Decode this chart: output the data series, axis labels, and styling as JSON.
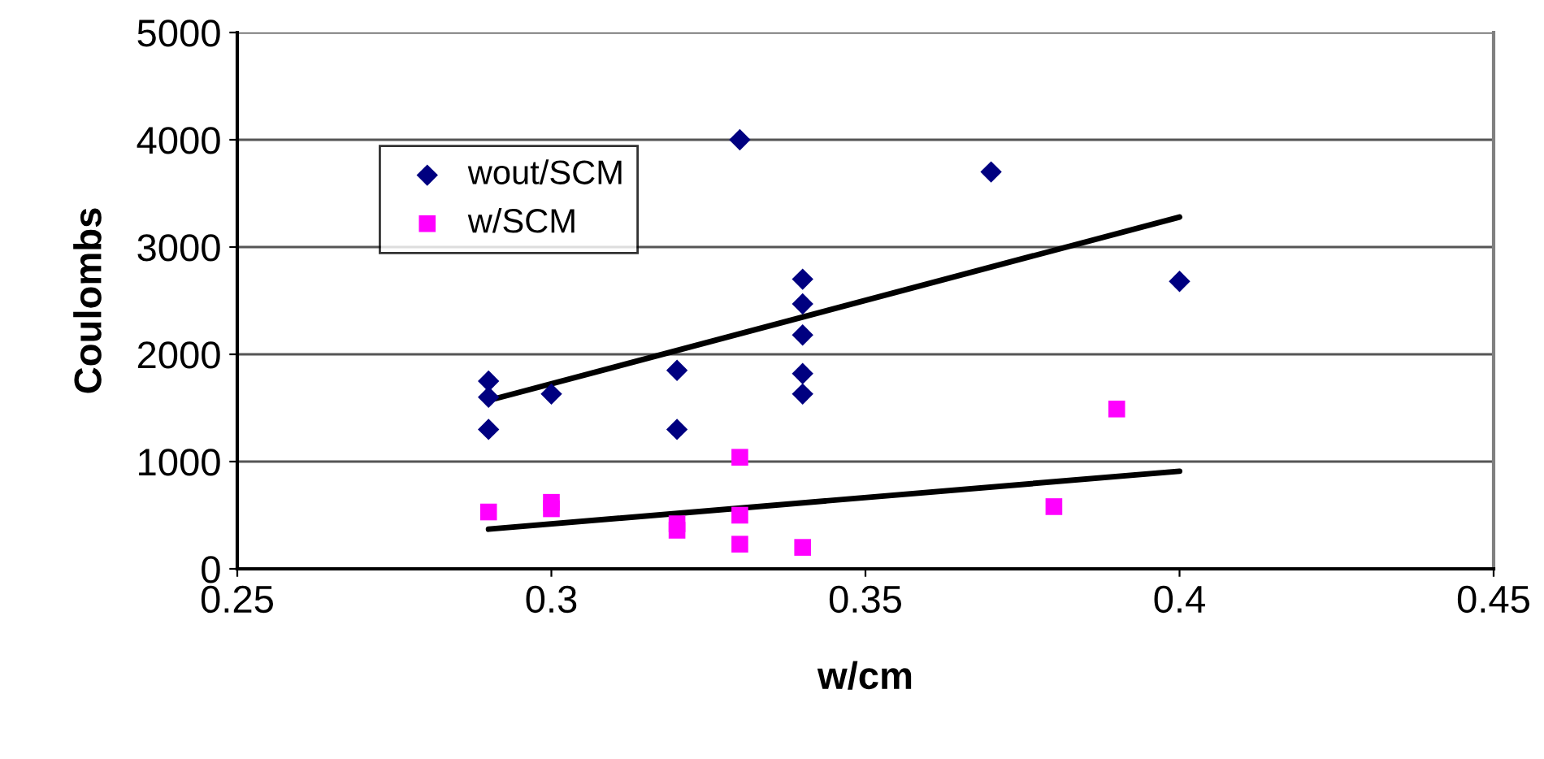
{
  "chart_data": {
    "type": "scatter",
    "xlabel": "w/cm",
    "ylabel": "Coulombs",
    "xlim": [
      0.25,
      0.45
    ],
    "xticks": [
      0.25,
      0.3,
      0.35,
      0.4,
      0.45
    ],
    "ylim": [
      0,
      5000
    ],
    "yticks": [
      0,
      1000,
      2000,
      3000,
      4000,
      5000
    ],
    "grid": "y",
    "legend": "top left",
    "series": [
      {
        "name": "wout/SCM",
        "color": "#000080",
        "marker": "diamond",
        "x": [
          0.29,
          0.29,
          0.29,
          0.3,
          0.32,
          0.32,
          0.33,
          0.34,
          0.34,
          0.34,
          0.34,
          0.34,
          0.37,
          0.4
        ],
        "values": [
          1750,
          1600,
          1300,
          1630,
          1850,
          1300,
          4000,
          2700,
          2470,
          2180,
          1820,
          1630,
          3700,
          2680
        ]
      },
      {
        "name": "w/SCM",
        "color": "#ff00ff",
        "marker": "square",
        "x": [
          0.29,
          0.3,
          0.3,
          0.32,
          0.32,
          0.33,
          0.33,
          0.33,
          0.34,
          0.38,
          0.39
        ],
        "values": [
          530,
          620,
          560,
          420,
          360,
          1040,
          500,
          230,
          200,
          580,
          1490
        ]
      },
      {
        "type": "line",
        "color": "#000000",
        "marker": "none",
        "x": [
          0.29,
          0.4
        ],
        "values": [
          1570,
          3280
        ]
      },
      {
        "type": "line",
        "color": "#000000",
        "marker": "none",
        "x": [
          0.29,
          0.4
        ],
        "values": [
          370,
          910
        ]
      }
    ]
  }
}
